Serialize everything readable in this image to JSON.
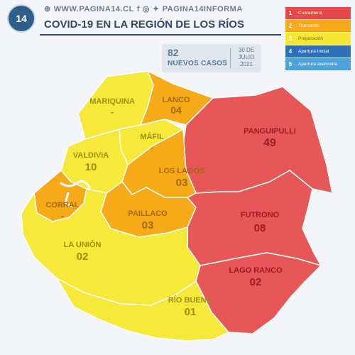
{
  "header": {
    "logo_text": "14",
    "website": "WWW.PAGINA14.CL",
    "social_handle": "PAGINA14INFORMA",
    "title": "COVID-19 EN LA REGIÓN DE LOS RÍOS"
  },
  "cases": {
    "count": "82",
    "label": "NUEVOS CASOS",
    "date_line1": "30 DE",
    "date_line2": "JULIO",
    "date_line3": "2021"
  },
  "legend": [
    {
      "num": "1",
      "label": "Cuarentena",
      "color": "#e44848"
    },
    {
      "num": "2",
      "label": "Transición",
      "color": "#f7a81b"
    },
    {
      "num": "3",
      "label": "Preparación",
      "color": "#f5e633"
    },
    {
      "num": "4",
      "label": "Apertura Inicial",
      "color": "#2e6fb7"
    },
    {
      "num": "5",
      "label": "Apertura avanzada",
      "color": "#4da3d8"
    }
  ],
  "communes": {
    "mariquina": {
      "name": "MARIQUINA",
      "cases": "-",
      "phase": 3
    },
    "lanco": {
      "name": "LANCO",
      "cases": "04",
      "phase": 2
    },
    "mafil": {
      "name": "MÁFIL",
      "cases": "-",
      "phase": 3
    },
    "panguipulli": {
      "name": "PANGUIPULLI",
      "cases": "49",
      "phase": 1
    },
    "valdivia": {
      "name": "VALDIVIA",
      "cases": "10",
      "phase": 3
    },
    "loslagos": {
      "name": "LOS LAGOS",
      "cases": "03",
      "phase": 2
    },
    "corral": {
      "name": "CORRAL",
      "cases": "-",
      "phase": 2
    },
    "paillaco": {
      "name": "PAILLACO",
      "cases": "03",
      "phase": 2
    },
    "futrono": {
      "name": "FUTRONO",
      "cases": "08",
      "phase": 1
    },
    "launion": {
      "name": "LA UNIÓN",
      "cases": "02",
      "phase": 3
    },
    "lagoranco": {
      "name": "LAGO RANCO",
      "cases": "02",
      "phase": 1
    },
    "riobueno": {
      "name": "RÍO BUENO",
      "cases": "01",
      "phase": 3
    }
  },
  "colors": {
    "phase1": "#e85757",
    "phase2": "#f6aa17",
    "phase3": "#f6e93a",
    "label_phase1": "#9a1c1c",
    "label_phase2": "#a06a08",
    "label_phase3": "#9c8f10"
  }
}
